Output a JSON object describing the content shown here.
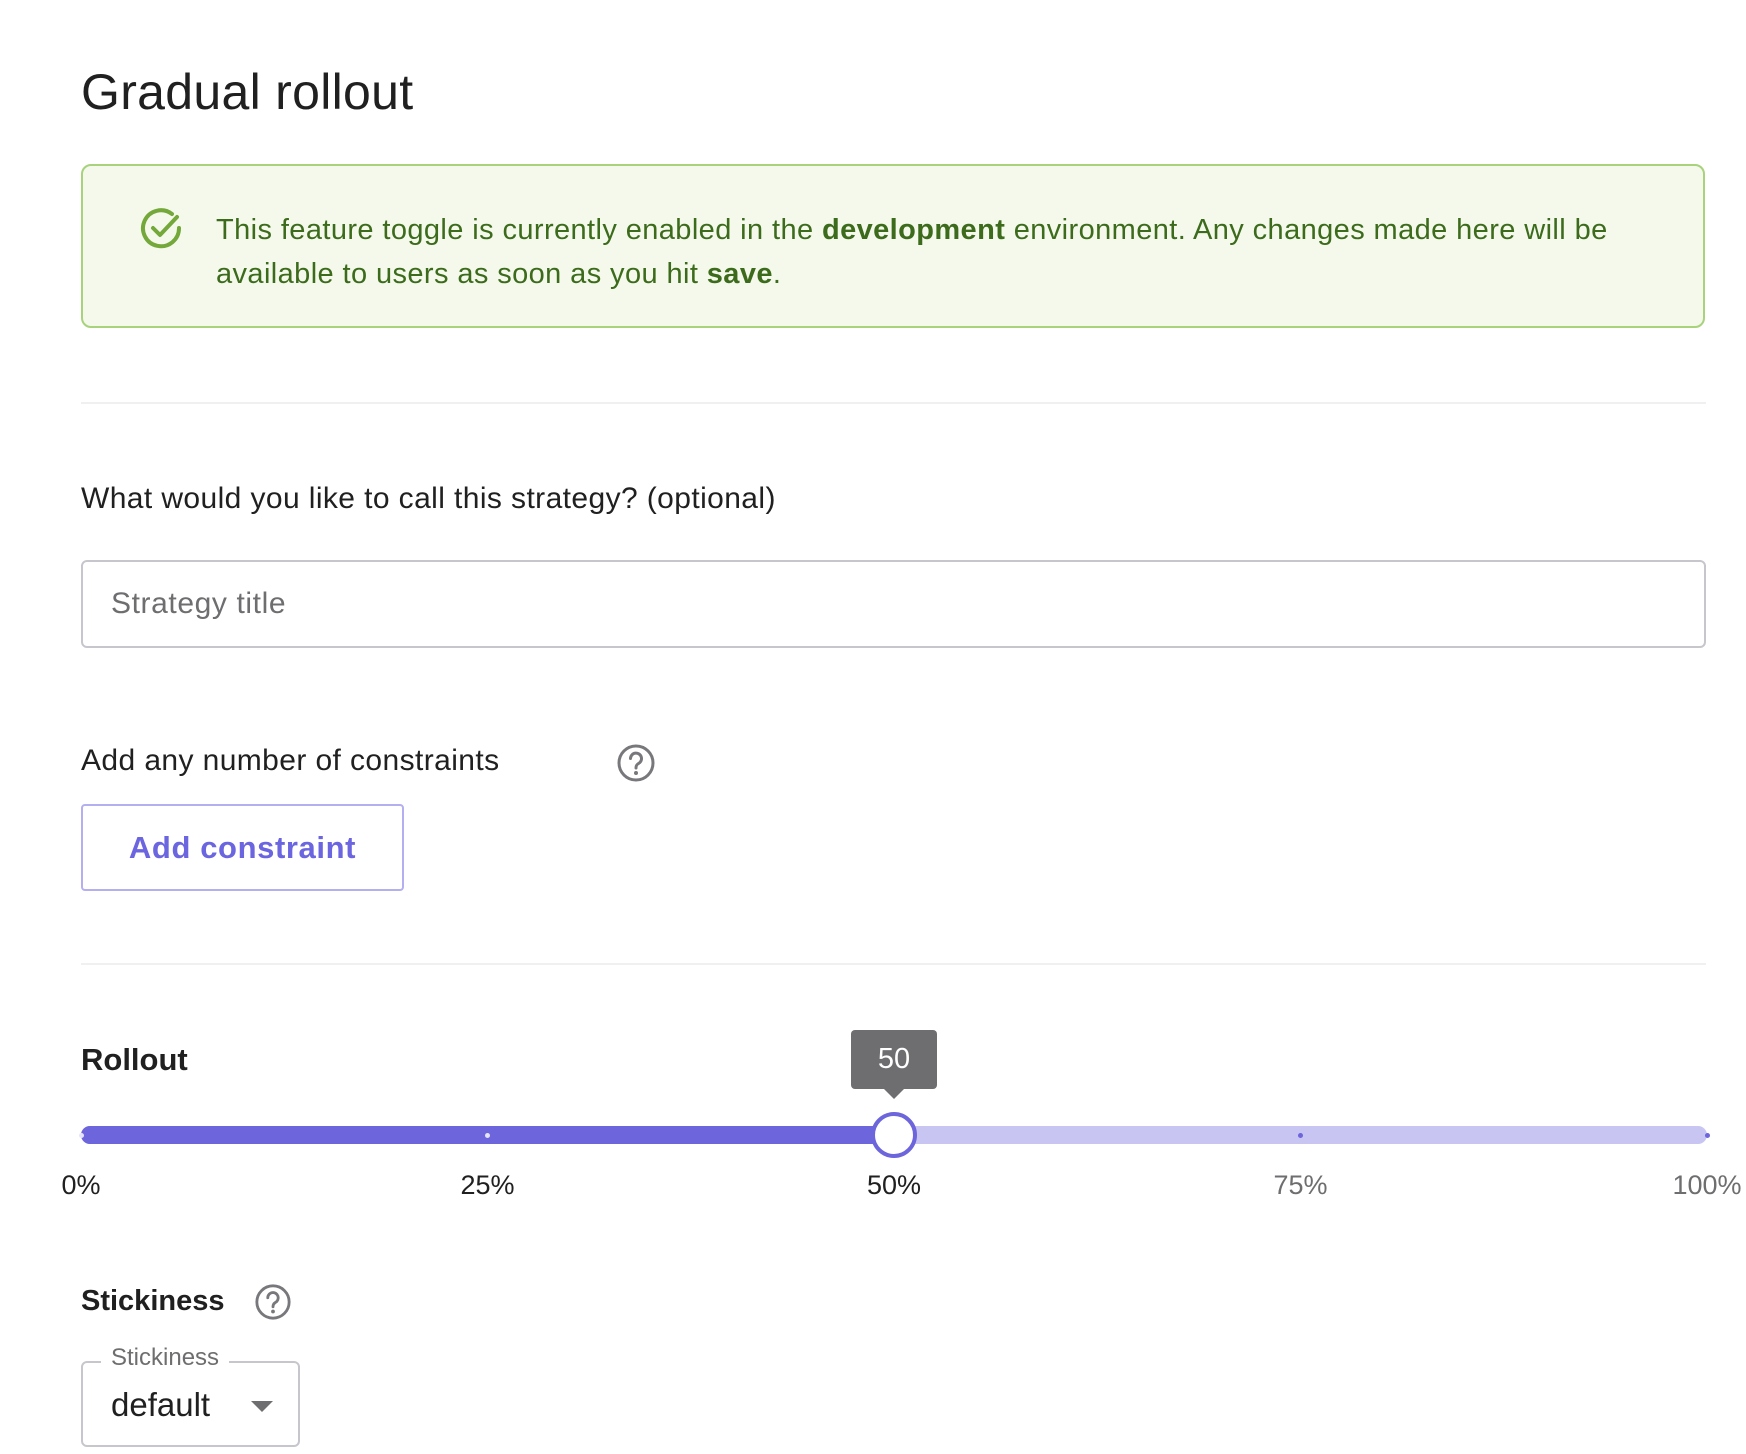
{
  "title": "Gradual rollout",
  "alert": {
    "icon": "check-circle-icon",
    "text_before": "This feature toggle is currently enabled in the ",
    "environment": "development",
    "text_middle": " environment. Any changes made here will be available to users as soon as you hit ",
    "save_word": "save",
    "text_after": ".",
    "colors": {
      "background": "#f4f9ec",
      "border": "#a8d27c",
      "text": "#3d6b1c",
      "icon": "#74a83a"
    }
  },
  "strategy_name": {
    "label": "What would you like to call this strategy? (optional)",
    "placeholder": "Strategy title",
    "value": ""
  },
  "constraints": {
    "label": "Add any number of constraints",
    "help_icon": "help-circle-icon",
    "button_label": "Add constraint"
  },
  "rollout": {
    "label": "Rollout",
    "value": 50,
    "tooltip": "50",
    "min": 0,
    "max": 100,
    "marks": [
      "0%",
      "25%",
      "50%",
      "75%",
      "100%"
    ],
    "colors": {
      "fill": "#6c65db",
      "track": "#c8c5f3"
    }
  },
  "stickiness": {
    "label": "Stickiness",
    "help_icon": "help-circle-icon",
    "select_label": "Stickiness",
    "selected": "default"
  }
}
